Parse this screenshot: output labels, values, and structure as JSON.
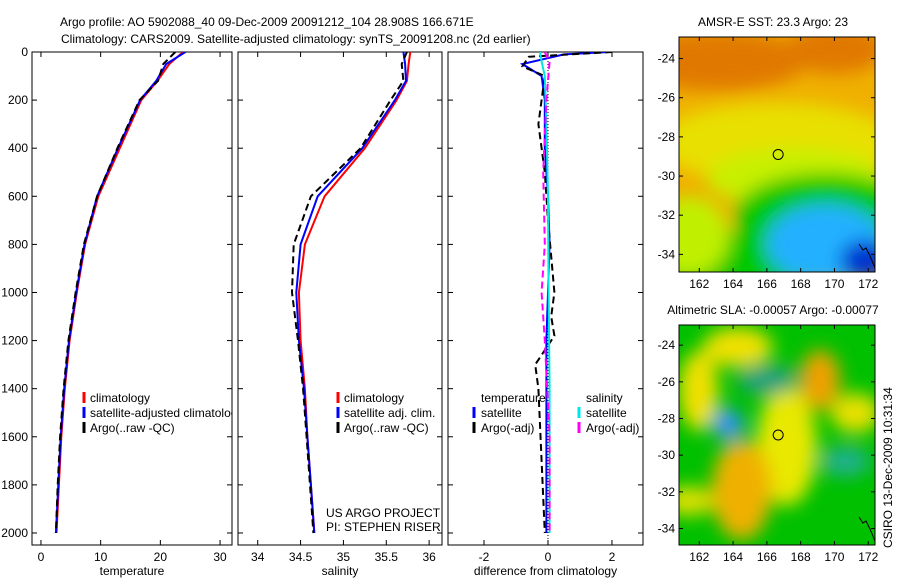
{
  "chart_data": [
    {
      "type": "line",
      "id": "temp",
      "title_lines": [
        "Argo profile: AO 5902088_40 09-Dec-2009 20091212_104 28.908S 166.671E",
        "Climatology: CARS2009. Satellite-adjusted climatology: synTS_20091208.nc (2d earlier)"
      ],
      "xlabel": "temperature",
      "ylabel": "",
      "xlim": [
        -1.5,
        32
      ],
      "ylim": [
        0,
        2050
      ],
      "xticks": [
        0,
        10,
        20,
        30
      ],
      "yticks": [
        0,
        200,
        400,
        600,
        800,
        1000,
        1200,
        1400,
        1600,
        1800,
        2000
      ],
      "legend": [
        "climatology",
        "satellite-adjusted climatology",
        "Argo(..raw -QC)"
      ],
      "series": [
        {
          "name": "climatology",
          "color": "#ff0000",
          "style": "solid",
          "x": [
            23.8,
            21.5,
            19.5,
            16.8,
            13.2,
            9.6,
            7.4,
            6.0,
            4.8,
            4.0,
            3.4,
            3.0,
            2.6
          ],
          "y": [
            0,
            50,
            120,
            200,
            400,
            600,
            800,
            1000,
            1200,
            1400,
            1600,
            1800,
            2000
          ]
        },
        {
          "name": "satellite-adjusted climatology",
          "color": "#0000ff",
          "style": "solid",
          "x": [
            24.2,
            21.0,
            19.3,
            16.6,
            12.9,
            9.4,
            7.3,
            5.9,
            4.7,
            3.9,
            3.3,
            2.9,
            2.5
          ],
          "y": [
            0,
            50,
            120,
            200,
            400,
            600,
            800,
            1000,
            1200,
            1400,
            1600,
            1800,
            2000
          ]
        },
        {
          "name": "Argo(..raw -QC)",
          "color": "#000000",
          "style": "dash",
          "x": [
            22.5,
            20.5,
            19.6,
            16.5,
            12.8,
            9.4,
            7.2,
            5.8,
            4.6,
            3.8,
            3.2,
            2.8,
            2.5
          ],
          "y": [
            0,
            50,
            120,
            200,
            400,
            600,
            800,
            1000,
            1200,
            1400,
            1600,
            1800,
            2000
          ]
        }
      ]
    },
    {
      "type": "line",
      "id": "sal",
      "xlabel": "salinity",
      "xlim": [
        33.77,
        36.15
      ],
      "ylim": [
        0,
        2050
      ],
      "xticks": [
        34,
        34.5,
        35,
        35.5,
        36
      ],
      "legend": [
        "climatology",
        "satellite adj. clim.",
        "Argo(..raw -QC)"
      ],
      "annotation": [
        "US ARGO PROJECT",
        "PI: STEPHEN RISER"
      ],
      "series": [
        {
          "name": "climatology",
          "color": "#ff0000",
          "style": "solid",
          "x": [
            35.78,
            35.76,
            35.74,
            35.62,
            35.25,
            34.78,
            34.55,
            34.48,
            34.5,
            34.55,
            34.58,
            34.62,
            34.66
          ],
          "y": [
            0,
            50,
            120,
            200,
            400,
            600,
            800,
            1000,
            1200,
            1400,
            1600,
            1800,
            2000
          ]
        },
        {
          "name": "satellite adj. clim.",
          "color": "#0000ff",
          "style": "solid",
          "x": [
            35.7,
            35.72,
            35.73,
            35.6,
            35.22,
            34.7,
            34.5,
            34.45,
            34.48,
            34.54,
            34.58,
            34.62,
            34.66
          ],
          "y": [
            0,
            50,
            120,
            200,
            400,
            600,
            800,
            1000,
            1200,
            1400,
            1600,
            1800,
            2000
          ]
        },
        {
          "name": "Argo(..raw -QC)",
          "color": "#000000",
          "style": "dash",
          "x": [
            35.74,
            35.68,
            35.7,
            35.55,
            35.2,
            34.62,
            34.42,
            34.4,
            34.47,
            34.53,
            34.57,
            34.61,
            34.65
          ],
          "y": [
            0,
            50,
            120,
            200,
            400,
            600,
            800,
            1000,
            1200,
            1400,
            1600,
            1800,
            2000
          ]
        }
      ]
    },
    {
      "type": "line",
      "id": "diff",
      "xlabel": "difference from climatology",
      "xlim": [
        -3.125,
        2.97
      ],
      "ylim": [
        0,
        2050
      ],
      "xticks": [
        -2,
        0,
        2
      ],
      "legend_temperature": {
        "title": "temperature",
        "items": [
          "satellite",
          "Argo(-adj)"
        ]
      },
      "legend_salinity": {
        "title": "salinity",
        "items": [
          "satellite",
          "Argo(-adj)"
        ]
      },
      "series": [
        {
          "name": "temperature satellite",
          "color": "#0000ff",
          "style": "solid",
          "x": [
            1.9,
            0.5,
            -0.8,
            -0.2,
            -0.1,
            -0.1,
            0,
            0.05,
            0,
            -0.05,
            -0.05,
            -0.05,
            -0.05
          ],
          "y": [
            0,
            10,
            50,
            100,
            200,
            400,
            600,
            800,
            1000,
            1200,
            1400,
            1600,
            2000
          ]
        },
        {
          "name": "temperature Argo(-adj)",
          "color": "#000000",
          "style": "dash",
          "x": [
            2.0,
            -0.6,
            -0.8,
            -0.1,
            -0.3,
            -0.1,
            0,
            0.2,
            0.1,
            0.2,
            -0.4,
            -0.3,
            -0.1
          ],
          "y": [
            0,
            20,
            60,
            100,
            300,
            500,
            700,
            1000,
            1100,
            1180,
            1300,
            1400,
            2000
          ]
        },
        {
          "name": "salinity satellite",
          "color": "#00e5e5",
          "style": "solid",
          "x": [
            -0.25,
            -0.2,
            -0.1,
            -0.05,
            0,
            0.02,
            0.05,
            0.05,
            0.05
          ],
          "y": [
            0,
            40,
            100,
            300,
            600,
            1000,
            1400,
            1800,
            2000
          ]
        },
        {
          "name": "salinity Argo(-adj)",
          "color": "#ff00ff",
          "style": "dash",
          "x": [
            -0.1,
            0.05,
            -0.05,
            -0.15,
            -0.1,
            -0.2,
            -0.1,
            0.05,
            0.05
          ],
          "y": [
            0,
            40,
            200,
            500,
            800,
            1000,
            1200,
            1600,
            2000
          ]
        }
      ]
    },
    {
      "type": "heatmap",
      "id": "sst",
      "title": "AMSR-E SST: 23.3 Argo: 23",
      "xlim": [
        160.8,
        172.4
      ],
      "ylim": [
        -34.9,
        -22.9
      ],
      "xticks": [
        162,
        164,
        166,
        168,
        170,
        172
      ],
      "yticks": [
        -24,
        -26,
        -28,
        -30,
        -32,
        -34
      ],
      "marker": {
        "lon": 166.67,
        "lat": -28.9
      }
    },
    {
      "type": "heatmap",
      "id": "sla",
      "title": "Altimetric SLA: -0.00057 Argo: -0.00077",
      "xlim": [
        160.8,
        172.4
      ],
      "ylim": [
        -34.9,
        -22.9
      ],
      "xticks": [
        162,
        164,
        166,
        168,
        170,
        172
      ],
      "yticks": [
        -24,
        -26,
        -28,
        -30,
        -32,
        -34
      ],
      "marker": {
        "lon": 166.67,
        "lat": -28.9
      }
    }
  ],
  "footer_stamp": "CSIRO 13-Dec-2009 10:31:34"
}
